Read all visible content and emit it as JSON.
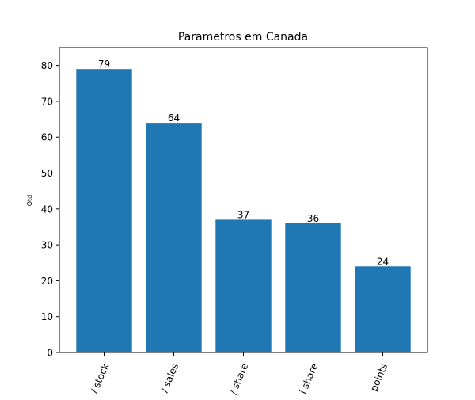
{
  "chart_data": {
    "type": "bar",
    "title": "Parametros em Canada",
    "xlabel": "",
    "ylabel": "Qtd",
    "categories": [
      "stock",
      "sales",
      "share",
      "share",
      "points"
    ],
    "category_labels_visible": [
      "/ stock",
      "/ sales",
      "/ share",
      "i share",
      "points"
    ],
    "values": [
      79,
      64,
      37,
      36,
      24
    ],
    "ylim": [
      0,
      85
    ],
    "yticks": [
      0,
      10,
      20,
      30,
      40,
      50,
      60,
      70,
      80
    ],
    "bar_color": "#1f77b4",
    "grid": false,
    "legend": "none"
  }
}
